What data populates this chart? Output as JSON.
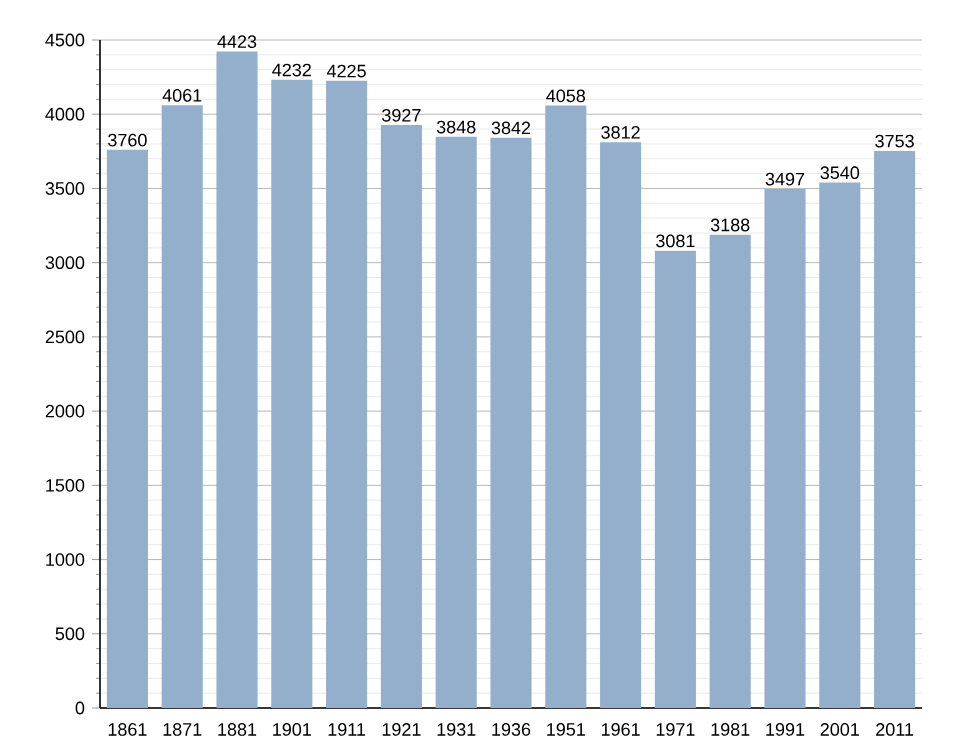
{
  "chart_data": {
    "type": "bar",
    "categories": [
      "1861",
      "1871",
      "1881",
      "1901",
      "1911",
      "1921",
      "1931",
      "1936",
      "1951",
      "1961",
      "1971",
      "1981",
      "1991",
      "2001",
      "2011"
    ],
    "values": [
      3760,
      4061,
      4423,
      4232,
      4225,
      3927,
      3848,
      3842,
      4058,
      3812,
      3081,
      3188,
      3497,
      3540,
      3753
    ],
    "color": "#94afcc",
    "ylim": [
      0,
      4500
    ],
    "yticks": [
      0,
      500,
      1000,
      1500,
      2000,
      2500,
      3000,
      3500,
      4000,
      4500
    ],
    "grid": "y",
    "data_labels": true
  }
}
